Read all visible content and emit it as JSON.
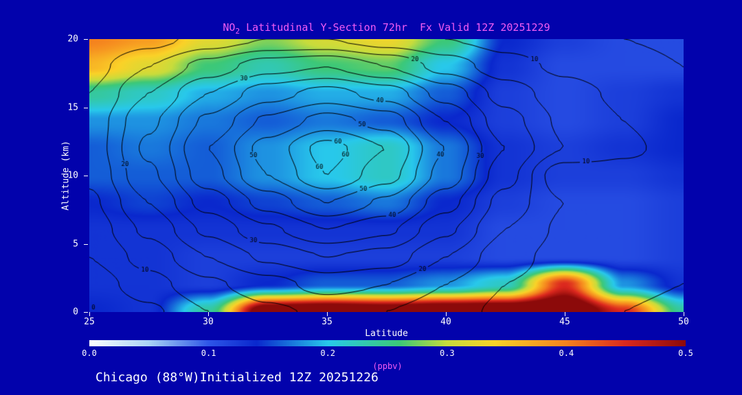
{
  "title_parts": {
    "pre": "NO",
    "sub": "2",
    "post": " Latitudinal Y-Section 72hr  Fx Valid 12Z 20251229"
  },
  "footer": "Chicago (88°W)Initialized 12Z 20251226",
  "colors": {
    "background": "#0202AC",
    "title_text": "#F45CF4",
    "axis_text": "#FFFFFF",
    "contour_lines": "#000000",
    "units_text": "#F45CF4"
  },
  "chart_data": {
    "type": "heatmap",
    "title": "NO2 Latitudinal Y-Section 72hr  Fx Valid 12Z 20251229",
    "xlabel": "Latitude",
    "ylabel": "Altitude (km)",
    "xlim": [
      25,
      50
    ],
    "ylim": [
      0,
      20
    ],
    "x_ticks": [
      "25",
      "30",
      "35",
      "40",
      "45",
      "50"
    ],
    "y_ticks": [
      "0",
      "5",
      "10",
      "15",
      "20"
    ],
    "colorbar": {
      "min": 0.0,
      "max": 0.5,
      "ticks": [
        "0.0",
        "0.1",
        "0.2",
        "0.3",
        "0.4",
        "0.5"
      ],
      "label": "(ppbv)"
    },
    "colormap": [
      [
        0.0,
        "#FFFFFF"
      ],
      [
        0.05,
        "#A9D3F5"
      ],
      [
        0.1,
        "#2E56E8"
      ],
      [
        0.14,
        "#0A28CD"
      ],
      [
        0.2,
        "#28C8EB"
      ],
      [
        0.26,
        "#3CC878"
      ],
      [
        0.3,
        "#C8DC3C"
      ],
      [
        0.34,
        "#FAD228"
      ],
      [
        0.4,
        "#F5821E"
      ],
      [
        0.45,
        "#DC281E"
      ],
      [
        0.5,
        "#8C0A0A"
      ]
    ],
    "no2_grid": {
      "lat": [
        25,
        27.5,
        30,
        32.5,
        35,
        37.5,
        40,
        42.5,
        45,
        47.5,
        50
      ],
      "alt_km": [
        20,
        18,
        16,
        14,
        12,
        10,
        8,
        6,
        4,
        2,
        0
      ],
      "values_ppbv": [
        [
          0.4,
          0.38,
          0.32,
          0.28,
          0.31,
          0.33,
          0.26,
          0.14,
          0.12,
          0.11,
          0.11
        ],
        [
          0.36,
          0.32,
          0.26,
          0.23,
          0.26,
          0.27,
          0.2,
          0.13,
          0.11,
          0.11,
          0.11
        ],
        [
          0.24,
          0.22,
          0.19,
          0.18,
          0.19,
          0.19,
          0.16,
          0.12,
          0.11,
          0.12,
          0.13
        ],
        [
          0.18,
          0.18,
          0.17,
          0.16,
          0.17,
          0.16,
          0.14,
          0.12,
          0.11,
          0.12,
          0.14
        ],
        [
          0.16,
          0.17,
          0.16,
          0.18,
          0.2,
          0.22,
          0.17,
          0.13,
          0.12,
          0.13,
          0.14
        ],
        [
          0.16,
          0.16,
          0.16,
          0.18,
          0.2,
          0.22,
          0.17,
          0.13,
          0.12,
          0.12,
          0.13
        ],
        [
          0.14,
          0.15,
          0.14,
          0.15,
          0.16,
          0.17,
          0.14,
          0.12,
          0.11,
          0.11,
          0.12
        ],
        [
          0.13,
          0.13,
          0.13,
          0.13,
          0.13,
          0.13,
          0.13,
          0.11,
          0.11,
          0.11,
          0.12
        ],
        [
          0.13,
          0.13,
          0.12,
          0.12,
          0.12,
          0.12,
          0.12,
          0.11,
          0.11,
          0.11,
          0.12
        ],
        [
          0.13,
          0.13,
          0.12,
          0.14,
          0.16,
          0.16,
          0.18,
          0.22,
          0.45,
          0.18,
          0.13
        ],
        [
          0.14,
          0.13,
          0.24,
          0.56,
          0.58,
          0.56,
          0.58,
          0.58,
          0.58,
          0.45,
          0.24
        ]
      ]
    },
    "overlay_contours": {
      "levels": [
        0,
        5,
        10,
        15,
        20,
        25,
        30,
        35,
        40,
        45,
        50,
        55,
        60
      ],
      "labeled_levels": [
        0,
        10,
        20,
        30,
        40,
        50,
        60
      ],
      "lat": [
        25,
        27.5,
        30,
        32.5,
        35,
        37.5,
        40,
        42.5,
        45,
        47.5,
        50
      ],
      "alt_km": [
        20,
        18,
        16,
        14,
        12,
        10,
        8,
        6,
        4,
        2,
        0
      ],
      "values": [
        [
          5,
          8,
          12,
          15,
          15,
          12,
          10,
          8,
          6,
          5,
          4
        ],
        [
          8,
          15,
          22,
          28,
          30,
          25,
          18,
          12,
          9,
          7,
          5
        ],
        [
          10,
          20,
          30,
          38,
          42,
          38,
          28,
          18,
          12,
          9,
          6
        ],
        [
          12,
          24,
          36,
          46,
          52,
          48,
          35,
          22,
          14,
          10,
          7
        ],
        [
          12,
          26,
          40,
          52,
          62,
          55,
          40,
          25,
          15,
          11,
          8
        ],
        [
          11,
          24,
          38,
          50,
          60,
          52,
          38,
          22,
          6,
          8,
          9
        ],
        [
          9,
          20,
          32,
          42,
          50,
          44,
          32,
          18,
          10,
          7,
          8
        ],
        [
          7,
          16,
          26,
          34,
          40,
          36,
          26,
          15,
          9,
          7,
          7
        ],
        [
          5,
          12,
          20,
          26,
          30,
          28,
          20,
          12,
          8,
          7,
          6
        ],
        [
          2,
          8,
          14,
          18,
          22,
          20,
          15,
          10,
          8,
          7,
          5
        ],
        [
          0,
          4,
          10,
          14,
          16,
          15,
          12,
          9,
          7,
          5,
          3
        ]
      ]
    }
  }
}
